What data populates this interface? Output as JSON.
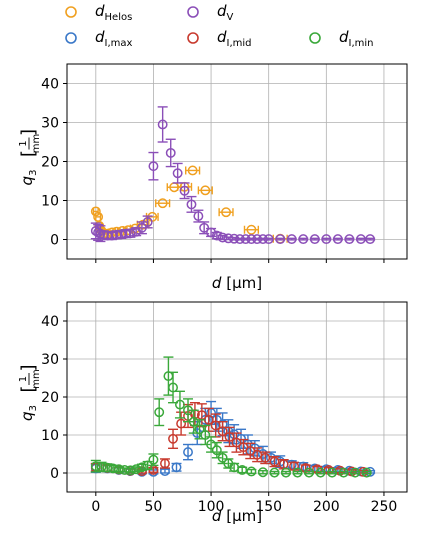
{
  "legend": {
    "position": "top",
    "entries": [
      {
        "label": "d",
        "sub": "Helos",
        "color": "#f0a020"
      },
      {
        "label": "d",
        "sub": "V",
        "color": "#8b4fb8"
      },
      {
        "label": "d",
        "sub": "I,max",
        "color": "#3a78c8"
      },
      {
        "label": "d",
        "sub": "I,mid",
        "color": "#c83a2e"
      },
      {
        "label": "d",
        "sub": "I,min",
        "color": "#3aa83a"
      }
    ]
  },
  "chart_data": [
    {
      "type": "scatter",
      "panel": "top",
      "xlabel": "d [µm]",
      "ylabel": "q3 [1/mm]",
      "xlim": [
        -25,
        270
      ],
      "ylim": [
        -5,
        45
      ],
      "xticks": [
        0,
        50,
        100,
        150,
        200,
        250
      ],
      "yticks": [
        0,
        10,
        20,
        30,
        40
      ],
      "show_x_ticklabels": false,
      "grid": true,
      "series": [
        {
          "name": "Helos",
          "color": "#f0a020",
          "marker": "circle",
          "errorbars": "horizontal",
          "points": [
            {
              "x": 0,
              "y": 7.2,
              "ex": 2
            },
            {
              "x": 2,
              "y": 5.8,
              "ex": 2
            },
            {
              "x": 3,
              "y": 3.5,
              "ex": 2
            },
            {
              "x": 5,
              "y": 2.2,
              "ex": 2
            },
            {
              "x": 7,
              "y": 1.5,
              "ex": 2
            },
            {
              "x": 10,
              "y": 1.5,
              "ex": 3
            },
            {
              "x": 14,
              "y": 1.8,
              "ex": 3
            },
            {
              "x": 18,
              "y": 2.0,
              "ex": 3
            },
            {
              "x": 23,
              "y": 2.2,
              "ex": 4
            },
            {
              "x": 28,
              "y": 2.4,
              "ex": 4
            },
            {
              "x": 34,
              "y": 2.8,
              "ex": 4
            },
            {
              "x": 41,
              "y": 3.8,
              "ex": 5
            },
            {
              "x": 49,
              "y": 5.8,
              "ex": 5
            },
            {
              "x": 58,
              "y": 9.3,
              "ex": 6
            },
            {
              "x": 68,
              "y": 13.4,
              "ex": 6
            },
            {
              "x": 77,
              "y": 13.5,
              "ex": 6
            },
            {
              "x": 84,
              "y": 17.7,
              "ex": 6
            },
            {
              "x": 95,
              "y": 12.6,
              "ex": 6
            },
            {
              "x": 113,
              "y": 7.0,
              "ex": 6
            },
            {
              "x": 135,
              "y": 2.5,
              "ex": 6
            },
            {
              "x": 160,
              "y": 0.2,
              "ex": 6
            }
          ]
        },
        {
          "name": "V",
          "color": "#8b4fb8",
          "marker": "circle",
          "errorbars": "vertical",
          "points": [
            {
              "x": 0,
              "y": 2.2,
              "ey": 2
            },
            {
              "x": 2,
              "y": 1.8,
              "ey": 2
            },
            {
              "x": 4,
              "y": 1.5,
              "ey": 2
            },
            {
              "x": 7,
              "y": 1.2,
              "ey": 1
            },
            {
              "x": 10,
              "y": 1.0,
              "ey": 1
            },
            {
              "x": 14,
              "y": 1.0,
              "ey": 1
            },
            {
              "x": 18,
              "y": 1.2,
              "ey": 1
            },
            {
              "x": 22,
              "y": 1.3,
              "ey": 1
            },
            {
              "x": 26,
              "y": 1.5,
              "ey": 1
            },
            {
              "x": 30,
              "y": 1.6,
              "ey": 1
            },
            {
              "x": 35,
              "y": 2.0,
              "ey": 1
            },
            {
              "x": 40,
              "y": 3.0,
              "ey": 1.5
            },
            {
              "x": 45,
              "y": 4.5,
              "ey": 1.5
            },
            {
              "x": 50,
              "y": 18.8,
              "ey": 3.5
            },
            {
              "x": 58,
              "y": 29.5,
              "ey": 4.5
            },
            {
              "x": 65,
              "y": 22.2,
              "ey": 3.5
            },
            {
              "x": 71,
              "y": 17.0,
              "ey": 2.5
            },
            {
              "x": 77,
              "y": 12.5,
              "ey": 2
            },
            {
              "x": 83,
              "y": 9.0,
              "ey": 2
            },
            {
              "x": 89,
              "y": 6.0,
              "ey": 1.5
            },
            {
              "x": 94,
              "y": 3.0,
              "ey": 1.5
            },
            {
              "x": 100,
              "y": 1.8,
              "ey": 1
            },
            {
              "x": 105,
              "y": 1.0,
              "ey": 0.8
            },
            {
              "x": 110,
              "y": 0.5,
              "ey": 0.5
            },
            {
              "x": 115,
              "y": 0.3,
              "ey": 0.3
            },
            {
              "x": 120,
              "y": 0.2,
              "ey": 0.3
            },
            {
              "x": 125,
              "y": 0.1,
              "ey": 0.2
            },
            {
              "x": 130,
              "y": 0.1,
              "ey": 0.2
            },
            {
              "x": 135,
              "y": 0.1,
              "ey": 0.2
            },
            {
              "x": 140,
              "y": 0.1,
              "ey": 0.2
            },
            {
              "x": 145,
              "y": 0.1,
              "ey": 0.2
            },
            {
              "x": 150,
              "y": 0.1,
              "ey": 0.2
            },
            {
              "x": 160,
              "y": 0.1,
              "ey": 0.2
            },
            {
              "x": 170,
              "y": 0.1,
              "ey": 0.2
            },
            {
              "x": 180,
              "y": 0.1,
              "ey": 0.2
            },
            {
              "x": 190,
              "y": 0.1,
              "ey": 0.2
            },
            {
              "x": 200,
              "y": 0.1,
              "ey": 0.2
            },
            {
              "x": 210,
              "y": 0.1,
              "ey": 0.2
            },
            {
              "x": 220,
              "y": 0.1,
              "ey": 0.2
            },
            {
              "x": 230,
              "y": 0.1,
              "ey": 0.2
            },
            {
              "x": 238,
              "y": 0.1,
              "ey": 0.2
            }
          ]
        }
      ]
    },
    {
      "type": "scatter",
      "panel": "bottom",
      "xlabel": "d [µm]",
      "ylabel": "q3 [1/mm]",
      "xlim": [
        -25,
        270
      ],
      "ylim": [
        -5,
        45
      ],
      "xticks": [
        0,
        50,
        100,
        150,
        200,
        250
      ],
      "yticks": [
        0,
        10,
        20,
        30,
        40
      ],
      "show_x_ticklabels": true,
      "grid": true,
      "series": [
        {
          "name": "I,max",
          "color": "#3a78c8",
          "marker": "circle",
          "errorbars": "vertical",
          "points": [
            {
              "x": 0,
              "y": 1.2,
              "ey": 1
            },
            {
              "x": 10,
              "y": 1.2,
              "ey": 0.8
            },
            {
              "x": 20,
              "y": 0.8,
              "ey": 0.6
            },
            {
              "x": 30,
              "y": 0.5,
              "ey": 0.5
            },
            {
              "x": 40,
              "y": 0.3,
              "ey": 0.5
            },
            {
              "x": 50,
              "y": 0.3,
              "ey": 0.5
            },
            {
              "x": 60,
              "y": 0.5,
              "ey": 0.5
            },
            {
              "x": 70,
              "y": 1.5,
              "ey": 1
            },
            {
              "x": 80,
              "y": 5.5,
              "ey": 2
            },
            {
              "x": 88,
              "y": 10.5,
              "ey": 3
            },
            {
              "x": 95,
              "y": 14.0,
              "ey": 3
            },
            {
              "x": 100,
              "y": 15.8,
              "ey": 3
            },
            {
              "x": 105,
              "y": 14.0,
              "ey": 3
            },
            {
              "x": 110,
              "y": 12.8,
              "ey": 3
            },
            {
              "x": 115,
              "y": 11.0,
              "ey": 3
            },
            {
              "x": 120,
              "y": 10.2,
              "ey": 2.5
            },
            {
              "x": 126,
              "y": 9.0,
              "ey": 2.5
            },
            {
              "x": 132,
              "y": 7.5,
              "ey": 2.5
            },
            {
              "x": 138,
              "y": 6.5,
              "ey": 2
            },
            {
              "x": 145,
              "y": 5.0,
              "ey": 2
            },
            {
              "x": 152,
              "y": 4.0,
              "ey": 1.5
            },
            {
              "x": 160,
              "y": 3.0,
              "ey": 1.5
            },
            {
              "x": 170,
              "y": 2.2,
              "ey": 1
            },
            {
              "x": 180,
              "y": 1.7,
              "ey": 1
            },
            {
              "x": 190,
              "y": 1.2,
              "ey": 0.8
            },
            {
              "x": 200,
              "y": 1.0,
              "ey": 0.7
            },
            {
              "x": 210,
              "y": 0.8,
              "ey": 0.6
            },
            {
              "x": 220,
              "y": 0.6,
              "ey": 0.5
            },
            {
              "x": 230,
              "y": 0.4,
              "ey": 0.4
            },
            {
              "x": 238,
              "y": 0.3,
              "ey": 0.3
            }
          ]
        },
        {
          "name": "I,mid",
          "color": "#c83a2e",
          "marker": "circle",
          "errorbars": "vertical",
          "points": [
            {
              "x": 0,
              "y": 1.5,
              "ey": 1
            },
            {
              "x": 10,
              "y": 1.3,
              "ey": 0.8
            },
            {
              "x": 20,
              "y": 0.9,
              "ey": 0.6
            },
            {
              "x": 30,
              "y": 0.6,
              "ey": 0.5
            },
            {
              "x": 40,
              "y": 0.5,
              "ey": 0.5
            },
            {
              "x": 50,
              "y": 0.8,
              "ey": 0.6
            },
            {
              "x": 60,
              "y": 2.5,
              "ey": 1.2
            },
            {
              "x": 67,
              "y": 9.0,
              "ey": 2.5
            },
            {
              "x": 74,
              "y": 13.0,
              "ey": 3
            },
            {
              "x": 80,
              "y": 15.0,
              "ey": 3
            },
            {
              "x": 86,
              "y": 15.5,
              "ey": 3
            },
            {
              "x": 92,
              "y": 15.2,
              "ey": 3
            },
            {
              "x": 98,
              "y": 14.0,
              "ey": 3
            },
            {
              "x": 104,
              "y": 12.5,
              "ey": 3
            },
            {
              "x": 110,
              "y": 11.0,
              "ey": 2.5
            },
            {
              "x": 116,
              "y": 9.5,
              "ey": 2.5
            },
            {
              "x": 122,
              "y": 8.0,
              "ey": 2.5
            },
            {
              "x": 128,
              "y": 6.8,
              "ey": 2
            },
            {
              "x": 134,
              "y": 5.8,
              "ey": 2
            },
            {
              "x": 140,
              "y": 4.8,
              "ey": 1.8
            },
            {
              "x": 147,
              "y": 4.0,
              "ey": 1.5
            },
            {
              "x": 155,
              "y": 3.0,
              "ey": 1.3
            },
            {
              "x": 163,
              "y": 2.3,
              "ey": 1.2
            },
            {
              "x": 172,
              "y": 1.8,
              "ey": 1
            },
            {
              "x": 182,
              "y": 1.3,
              "ey": 0.8
            },
            {
              "x": 192,
              "y": 1.0,
              "ey": 0.7
            },
            {
              "x": 202,
              "y": 0.8,
              "ey": 0.6
            },
            {
              "x": 212,
              "y": 0.6,
              "ey": 0.5
            },
            {
              "x": 222,
              "y": 0.4,
              "ey": 0.4
            },
            {
              "x": 232,
              "y": 0.3,
              "ey": 0.3
            }
          ]
        },
        {
          "name": "I,min",
          "color": "#3aa83a",
          "marker": "circle",
          "errorbars": "vertical",
          "points": [
            {
              "x": 0,
              "y": 1.8,
              "ey": 1.5
            },
            {
              "x": 5,
              "y": 1.6,
              "ey": 1.2
            },
            {
              "x": 10,
              "y": 1.4,
              "ey": 1
            },
            {
              "x": 15,
              "y": 1.2,
              "ey": 0.8
            },
            {
              "x": 20,
              "y": 1.0,
              "ey": 0.6
            },
            {
              "x": 25,
              "y": 0.8,
              "ey": 0.5
            },
            {
              "x": 30,
              "y": 0.7,
              "ey": 0.5
            },
            {
              "x": 35,
              "y": 1.0,
              "ey": 0.6
            },
            {
              "x": 40,
              "y": 1.5,
              "ey": 0.8
            },
            {
              "x": 45,
              "y": 2.0,
              "ey": 1
            },
            {
              "x": 50,
              "y": 3.5,
              "ey": 1.5
            },
            {
              "x": 55,
              "y": 16.0,
              "ey": 3.5
            },
            {
              "x": 63,
              "y": 25.5,
              "ey": 5
            },
            {
              "x": 67,
              "y": 22.5,
              "ey": 4
            },
            {
              "x": 73,
              "y": 18.0,
              "ey": 3.5
            },
            {
              "x": 80,
              "y": 16.5,
              "ey": 3
            },
            {
              "x": 85,
              "y": 13.5,
              "ey": 3
            },
            {
              "x": 90,
              "y": 11.5,
              "ey": 2.5
            },
            {
              "x": 95,
              "y": 10.0,
              "ey": 2.5
            },
            {
              "x": 100,
              "y": 7.5,
              "ey": 2
            },
            {
              "x": 105,
              "y": 6.0,
              "ey": 2
            },
            {
              "x": 110,
              "y": 4.0,
              "ey": 1.5
            },
            {
              "x": 115,
              "y": 2.5,
              "ey": 1.2
            },
            {
              "x": 120,
              "y": 1.5,
              "ey": 1
            },
            {
              "x": 127,
              "y": 0.8,
              "ey": 0.7
            },
            {
              "x": 135,
              "y": 0.4,
              "ey": 0.5
            },
            {
              "x": 145,
              "y": 0.2,
              "ey": 0.4
            },
            {
              "x": 155,
              "y": 0.1,
              "ey": 0.3
            },
            {
              "x": 165,
              "y": 0.1,
              "ey": 0.3
            },
            {
              "x": 175,
              "y": 0.1,
              "ey": 0.3
            },
            {
              "x": 185,
              "y": 0.1,
              "ey": 0.3
            },
            {
              "x": 195,
              "y": 0.1,
              "ey": 0.3
            },
            {
              "x": 205,
              "y": 0.1,
              "ey": 0.3
            },
            {
              "x": 215,
              "y": 0.1,
              "ey": 0.3
            },
            {
              "x": 225,
              "y": 0.1,
              "ey": 0.3
            },
            {
              "x": 235,
              "y": 0.1,
              "ey": 0.3
            }
          ]
        }
      ]
    }
  ]
}
